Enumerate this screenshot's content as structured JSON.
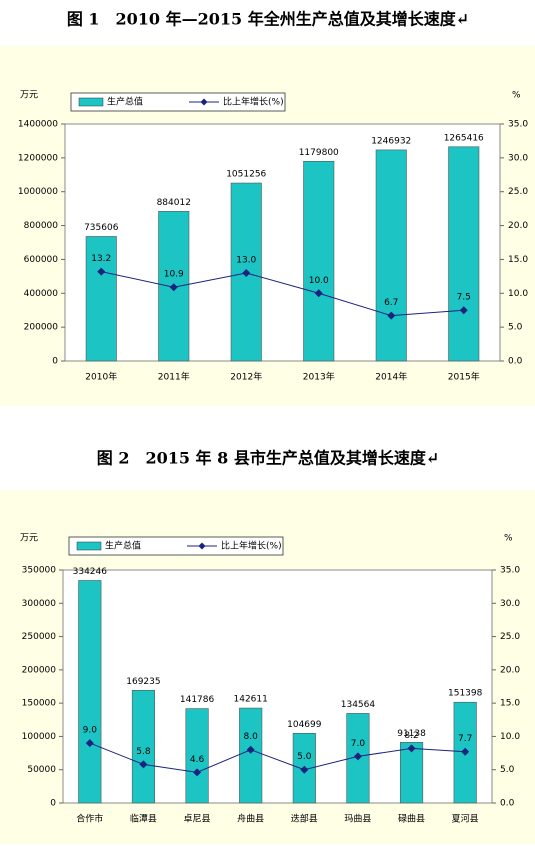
{
  "chart_data": [
    {
      "type": "bar",
      "title": "图 1　2010 年—2015 年全州生产总值及其增长速度↵",
      "y_label": "万元",
      "y2_label": "%",
      "categories": [
        "2010年",
        "2011年",
        "2012年",
        "2013年",
        "2014年",
        "2015年"
      ],
      "series": [
        {
          "name": "生产总值",
          "type": "bar",
          "color": "#1cc4c4",
          "values": [
            735606,
            884012,
            1051256,
            1179800,
            1246932,
            1265416
          ]
        },
        {
          "name": "比上年增长(%)",
          "type": "line",
          "axis": "y2",
          "color": "#1a237e",
          "values": [
            13.2,
            10.9,
            13.0,
            10.0,
            6.7,
            7.5
          ],
          "value_labels": [
            "13.2",
            "10.9",
            "13.0",
            "10.0",
            "6.7",
            "7.5"
          ]
        }
      ],
      "ylim": [
        0,
        1400000
      ],
      "yticks": [
        0,
        200000,
        400000,
        600000,
        800000,
        1000000,
        1200000,
        1400000
      ],
      "y2lim": [
        0,
        35
      ],
      "y2ticks": [
        {
          "value": 0,
          "label": "0.0"
        },
        {
          "value": 5,
          "label": "5.0"
        },
        {
          "value": 10,
          "label": "10.0"
        },
        {
          "value": 15,
          "label": "15.0"
        },
        {
          "value": 20,
          "label": "20.0"
        },
        {
          "value": 25,
          "label": "25.0"
        },
        {
          "value": 30,
          "label": "30.0"
        },
        {
          "value": 35,
          "label": "35.0"
        }
      ]
    },
    {
      "type": "bar",
      "title": "图 2　2015 年 8 县市生产总值及其增长速度↵",
      "y_label": "万元",
      "y2_label": "%",
      "categories": [
        "合作市",
        "临潭县",
        "卓尼县",
        "舟曲县",
        "迭部县",
        "玛曲县",
        "碌曲县",
        "夏河县"
      ],
      "series": [
        {
          "name": "生产总值",
          "type": "bar",
          "color": "#1cc4c4",
          "values": [
            334246,
            169235,
            141786,
            142611,
            104699,
            134564,
            91138,
            151398
          ]
        },
        {
          "name": "比上年增长(%)",
          "type": "line",
          "axis": "y2",
          "color": "#1a237e",
          "values": [
            9.0,
            5.8,
            4.6,
            8.0,
            5.0,
            7.0,
            8.2,
            7.7
          ],
          "value_labels": [
            "9.0",
            "5.8",
            "4.6",
            "8.0",
            "5.0",
            "7.0",
            "8.2",
            "7.7"
          ]
        }
      ],
      "ylim": [
        0,
        350000
      ],
      "yticks": [
        0,
        50000,
        100000,
        150000,
        200000,
        250000,
        300000,
        350000
      ],
      "y2lim": [
        0,
        35
      ],
      "y2ticks": [
        {
          "value": 0,
          "label": "0.0"
        },
        {
          "value": 5,
          "label": "5.0"
        },
        {
          "value": 10,
          "label": "10.0"
        },
        {
          "value": 15,
          "label": "15.0"
        },
        {
          "value": 20,
          "label": "20.0"
        },
        {
          "value": 25,
          "label": "25.0"
        },
        {
          "value": 30,
          "label": "30.0"
        },
        {
          "value": 35,
          "label": "35.0"
        }
      ]
    }
  ]
}
